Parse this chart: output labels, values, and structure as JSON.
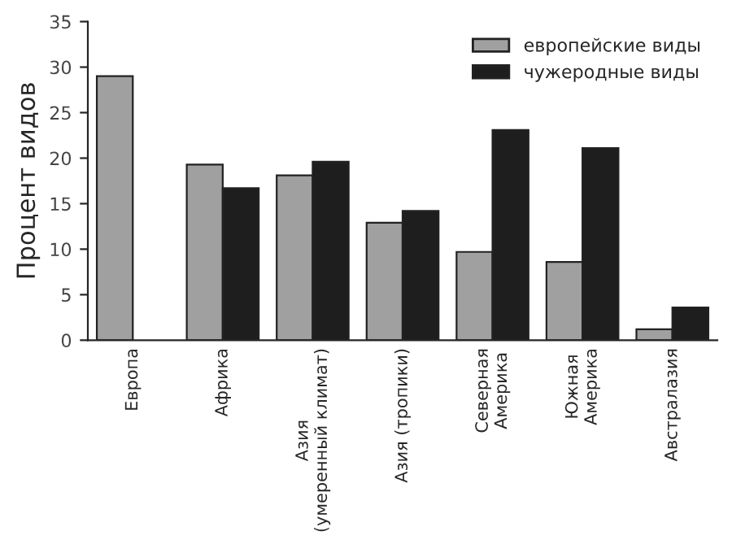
{
  "chart_data": {
    "type": "bar",
    "ylabel": "Процент видов",
    "categories": [
      "Европа",
      "Африка",
      "Азия\n(умеренный климат)",
      "Азия (тропики)",
      "Северная\nАмерика",
      "Южная\nАмерика",
      "Австралазия"
    ],
    "series": [
      {
        "name": "европейские виды",
        "color": "#a0a0a0",
        "values": [
          29,
          19.3,
          18.1,
          12.9,
          9.7,
          8.6,
          1.2
        ]
      },
      {
        "name": "чужеродные виды",
        "color": "#1e1e1e",
        "values": [
          null,
          16.7,
          19.6,
          14.2,
          23.1,
          21.1,
          3.6
        ]
      }
    ],
    "ylim": [
      0,
      35
    ],
    "yticks": [
      0,
      5,
      10,
      15,
      20,
      25,
      30,
      35
    ],
    "grid": false,
    "legend": "top right"
  }
}
